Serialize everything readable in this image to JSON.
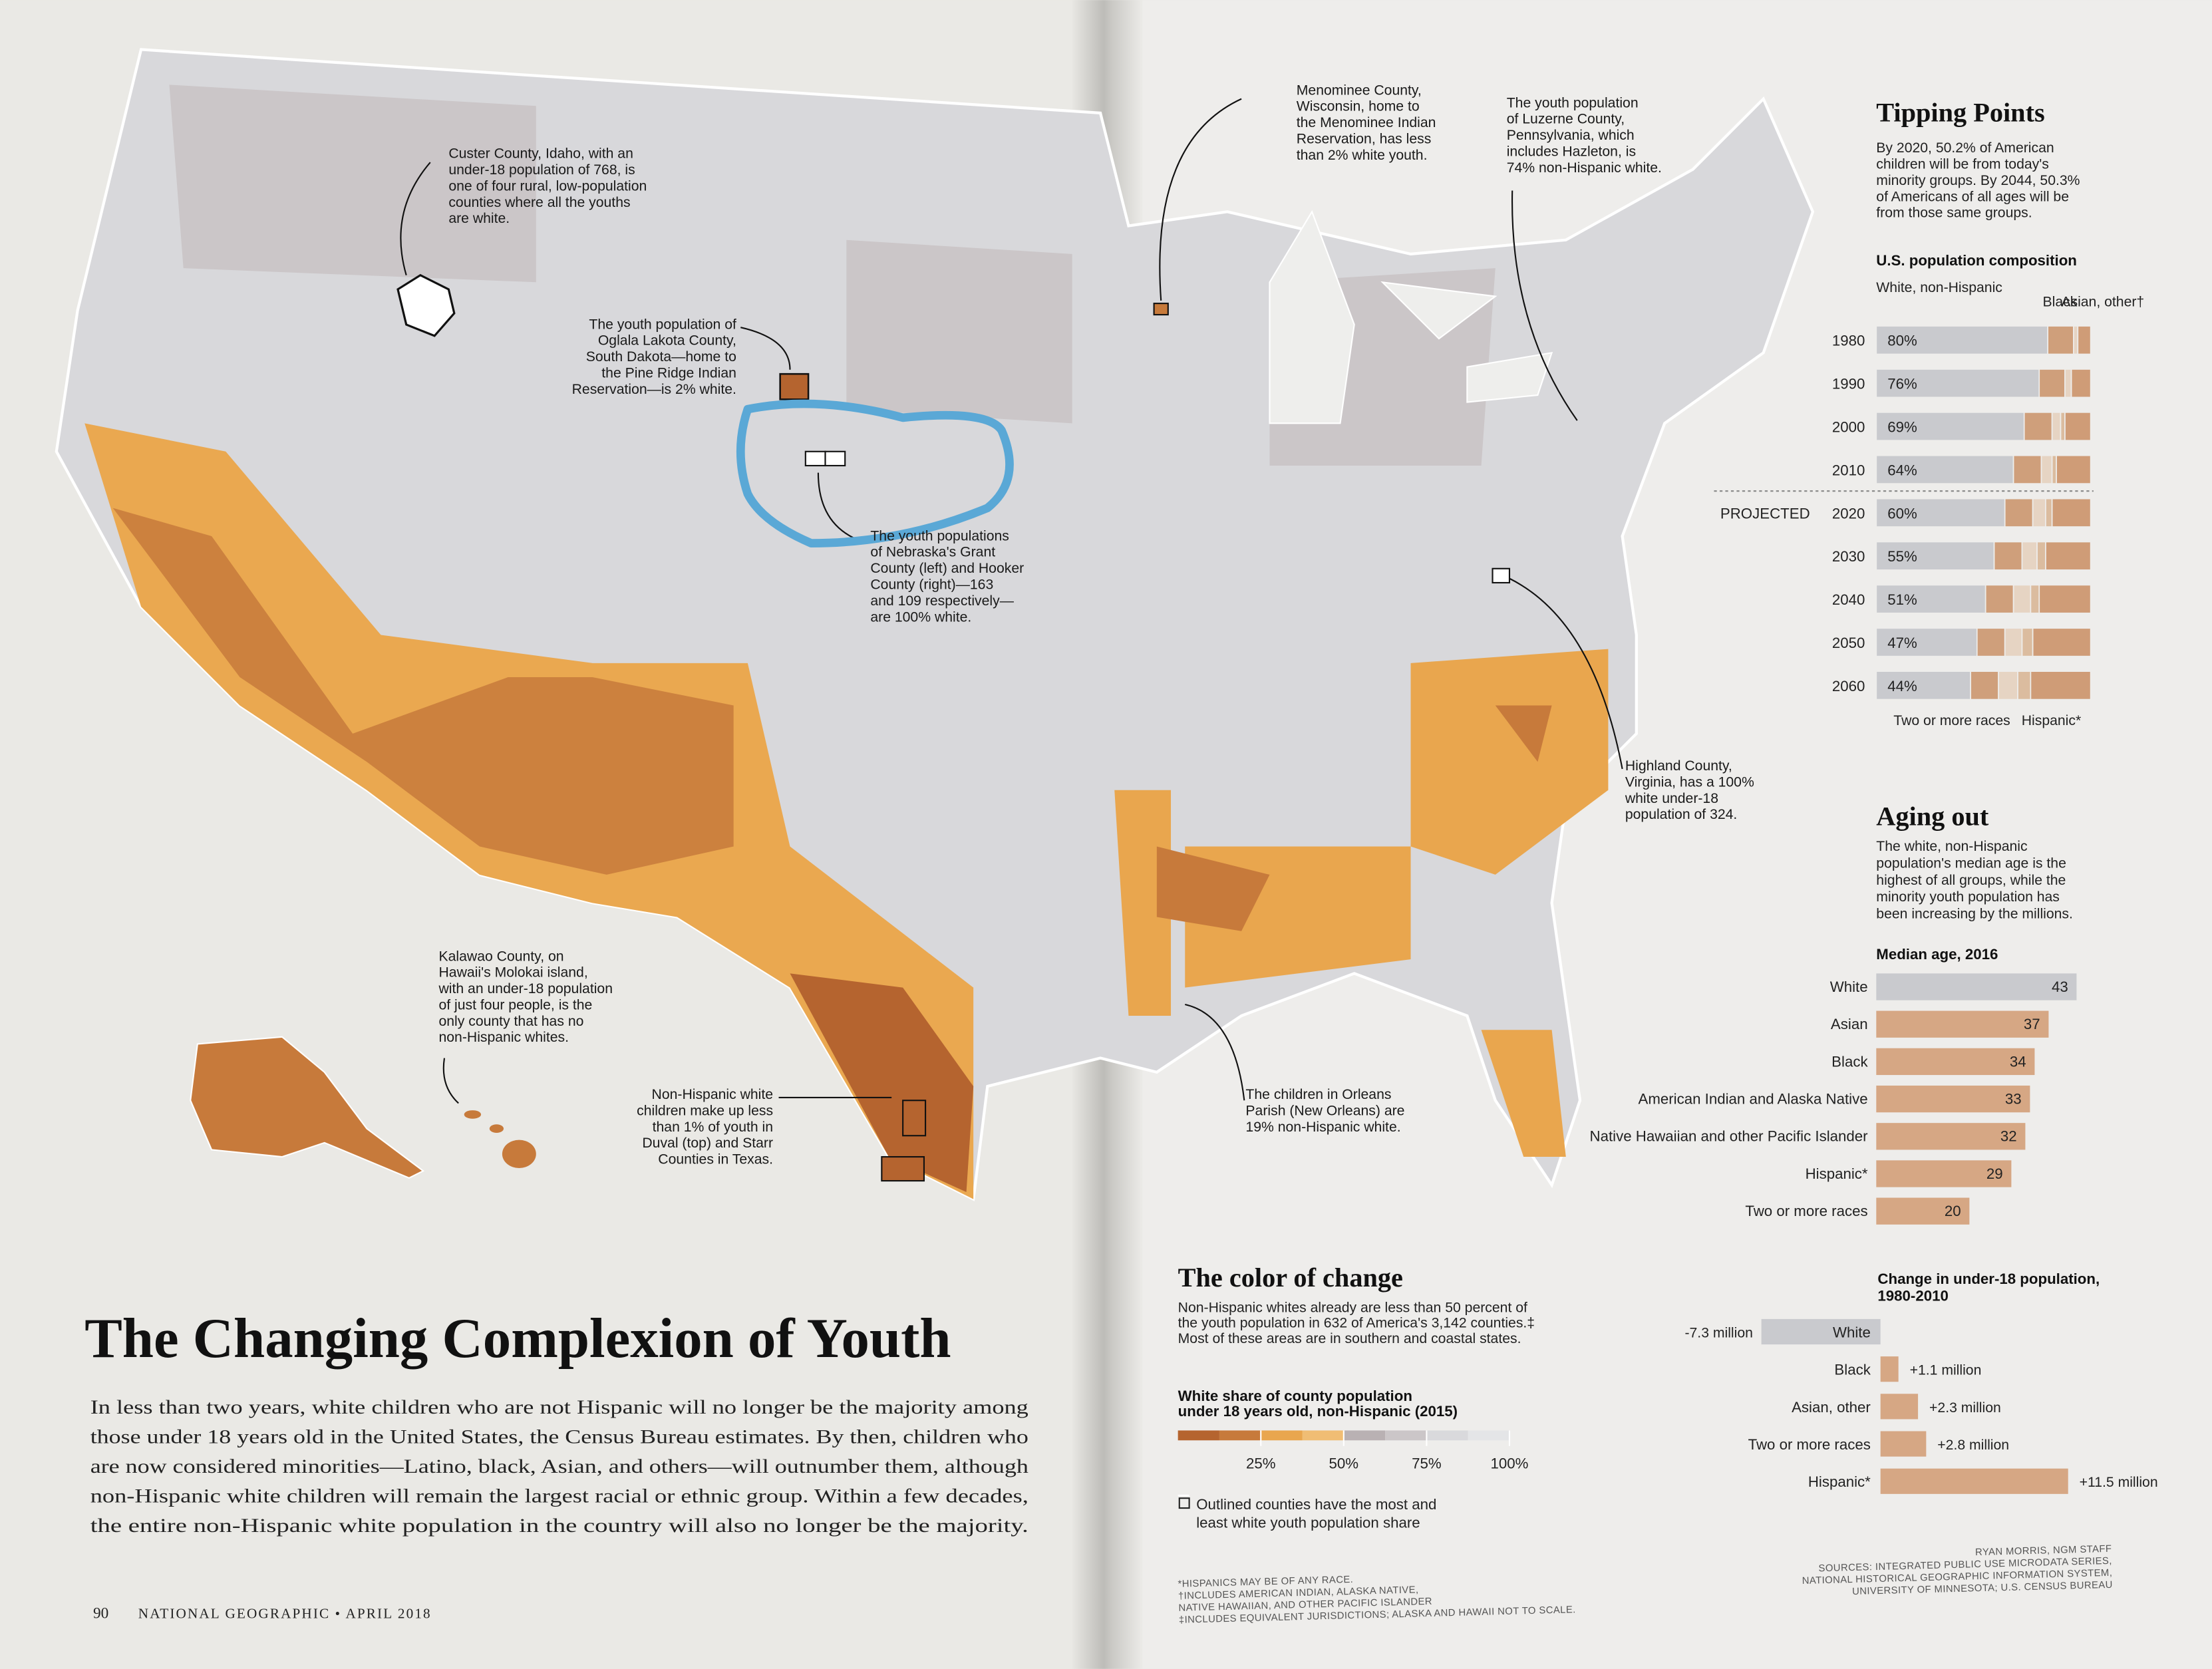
{
  "header": {
    "title": "The Changing Complexion of Youth",
    "intro": [
      "In less than two years, white children who are not Hispanic will no longer be the majority among",
      "those under 18 years old in the United States, the Census Bureau estimates. By then, children who",
      "are now considered minorities—Latino, black, Asian, and others—will outnumber them, although",
      "non-Hispanic white children will remain the largest racial or ethnic group. Within a few decades,",
      "the entire non-Hispanic white population in the country will also no longer be the majority."
    ],
    "folio": {
      "page": "90",
      "publication": "NATIONAL GEOGRAPHIC • APRIL 2018"
    }
  },
  "map_annotations": [
    {
      "lines": [
        "Custer County, Idaho, with an",
        "under-18 population of 768, is",
        "one of four rural, low-population",
        "counties where all the youths",
        "are white."
      ]
    },
    {
      "lines": [
        "The youth population of",
        "Oglala Lakota County,",
        "South Dakota—home to",
        "the Pine Ridge Indian",
        "Reservation—is 2% white."
      ]
    },
    {
      "lines": [
        "The youth populations",
        "of Nebraska's Grant",
        "County (left) and Hooker",
        "County (right)—163",
        "and 109 respectively—",
        "are 100% white."
      ]
    },
    {
      "lines": [
        "Menominee County,",
        "Wisconsin, home to",
        "the Menominee Indian",
        "Reservation, has less",
        "than 2% white youth."
      ]
    },
    {
      "lines": [
        "The youth population",
        "of Luzerne County,",
        "Pennsylvania, which",
        "includes Hazleton, is",
        "74% non-Hispanic white."
      ]
    },
    {
      "lines": [
        "Highland County,",
        "Virginia, has a 100%",
        "white under-18",
        "population of 324."
      ]
    },
    {
      "lines": [
        "The children in Orleans",
        "Parish (New Orleans) are",
        "19% non-Hispanic white."
      ]
    },
    {
      "lines": [
        "Kalawao County, on",
        "Hawaii's Molokai island,",
        "with an under-18 population",
        "of just four people, is the",
        "only county that has no",
        "non-Hispanic whites."
      ]
    },
    {
      "lines": [
        "Non-Hispanic white",
        "children make up less",
        "than 1% of youth in",
        "Duval (top) and Starr",
        "Counties in Texas."
      ]
    }
  ],
  "color_of_change": {
    "title": "The color of change",
    "text": [
      "Non-Hispanic whites already are less than 50 percent of",
      "the youth population in 632 of America's 3,142 counties.‡",
      "Most of these areas are in southern and coastal states."
    ],
    "legend_title": [
      "White share of county population",
      "under 18 years old, non-Hispanic (2015)"
    ],
    "colors": [
      "#b5642f",
      "#c77a3b",
      "#e9a64e",
      "#f0bd74",
      "#b9b1b3",
      "#cbc6c8",
      "#d9d9dc",
      "#e4e5e7"
    ],
    "xlim": [
      0,
      100
    ],
    "xticks": [
      {
        "value": 25,
        "label": "25%"
      },
      {
        "value": 50,
        "label": "50%"
      },
      {
        "value": 75,
        "label": "75%"
      },
      {
        "value": 100,
        "label": "100%"
      }
    ],
    "outline_note": [
      "Outlined counties have the most and",
      "least white youth population share"
    ]
  },
  "tipping_points": {
    "title": "Tipping Points",
    "text": [
      "By 2020, 50.2% of American",
      "children will be from today's",
      "minority groups. By 2044, 50.3%",
      "of Americans of all ages will be",
      "from those same groups."
    ],
    "chart": {
      "title": "U.S. population composition",
      "projected_label": "PROJECTED",
      "categories": [
        "1980",
        "1990",
        "2000",
        "2010",
        "2020",
        "2030",
        "2040",
        "2050",
        "2060"
      ],
      "series": [
        {
          "name": "White, non-Hispanic",
          "color": "#c9cace",
          "values": [
            80,
            76,
            69,
            64,
            60,
            55,
            51,
            47,
            44
          ],
          "value_labels": [
            "80%",
            "76%",
            "69%",
            "64%",
            "60%",
            "55%",
            "51%",
            "47%",
            "44%"
          ]
        },
        {
          "name": "Black",
          "color": "#cf9f7b",
          "values": [
            12,
            12,
            13,
            13,
            13,
            13,
            13,
            13,
            13
          ]
        },
        {
          "name": "Asian, other†",
          "color": "#e6d4c3",
          "values": [
            2,
            3,
            4,
            5,
            6,
            7,
            8,
            8,
            9
          ]
        },
        {
          "name": "Two or more races",
          "color": "#dbbc9f",
          "values": [
            0,
            0,
            2,
            2,
            3,
            4,
            4,
            5,
            6
          ]
        },
        {
          "name": "Hispanic*",
          "color": "#cf9c77",
          "values": [
            6,
            9,
            12,
            16,
            18,
            21,
            24,
            27,
            28
          ]
        }
      ]
    }
  },
  "aging_out": {
    "title": "Aging out",
    "text": [
      "The white, non-Hispanic",
      "population's median age is the",
      "highest of all groups, while the",
      "minority youth population has",
      "been increasing by the millions."
    ],
    "chart": {
      "title": "Median age, 2016",
      "categories": [
        "White",
        "Asian",
        "Black",
        "American Indian and Alaska Native",
        "Native Hawaiian and other Pacific Islander",
        "Hispanic*",
        "Two or more races"
      ],
      "values": [
        43,
        37,
        34,
        33,
        32,
        29,
        20
      ],
      "colors": [
        "#c9cace",
        "#d6a784",
        "#d6a784",
        "#d6a784",
        "#d6a784",
        "#d6a784",
        "#d6a784"
      ]
    }
  },
  "change": {
    "title": [
      "Change in under-18 population,",
      "1980-2010"
    ],
    "categories": [
      "White",
      "Black",
      "Asian, other",
      "Two or more races",
      "Hispanic*"
    ],
    "values": [
      -7.3,
      1.1,
      2.3,
      2.8,
      11.5
    ],
    "value_labels": [
      "-7.3 million",
      "+1.1 million",
      "+2.3 million",
      "+2.8 million",
      "+11.5 million"
    ],
    "colors": [
      "#c9cace",
      "#d6a784",
      "#d6a784",
      "#d6a784",
      "#d6a784"
    ]
  },
  "footnotes": [
    "*HISPANICS MAY BE OF ANY RACE.",
    "†INCLUDES AMERICAN INDIAN, ALASKA NATIVE,",
    "NATIVE HAWAIIAN, AND OTHER PACIFIC ISLANDER",
    "‡INCLUDES EQUIVALENT JURISDICTIONS; ALASKA AND HAWAII NOT TO SCALE."
  ],
  "credits": [
    "RYAN MORRIS, NGM STAFF",
    "SOURCES: INTEGRATED PUBLIC USE MICRODATA SERIES,",
    "NATIONAL HISTORICAL GEOGRAPHIC INFORMATION SYSTEM,",
    "UNIVERSITY OF MINNESOTA; U.S. CENSUS BUREAU"
  ]
}
